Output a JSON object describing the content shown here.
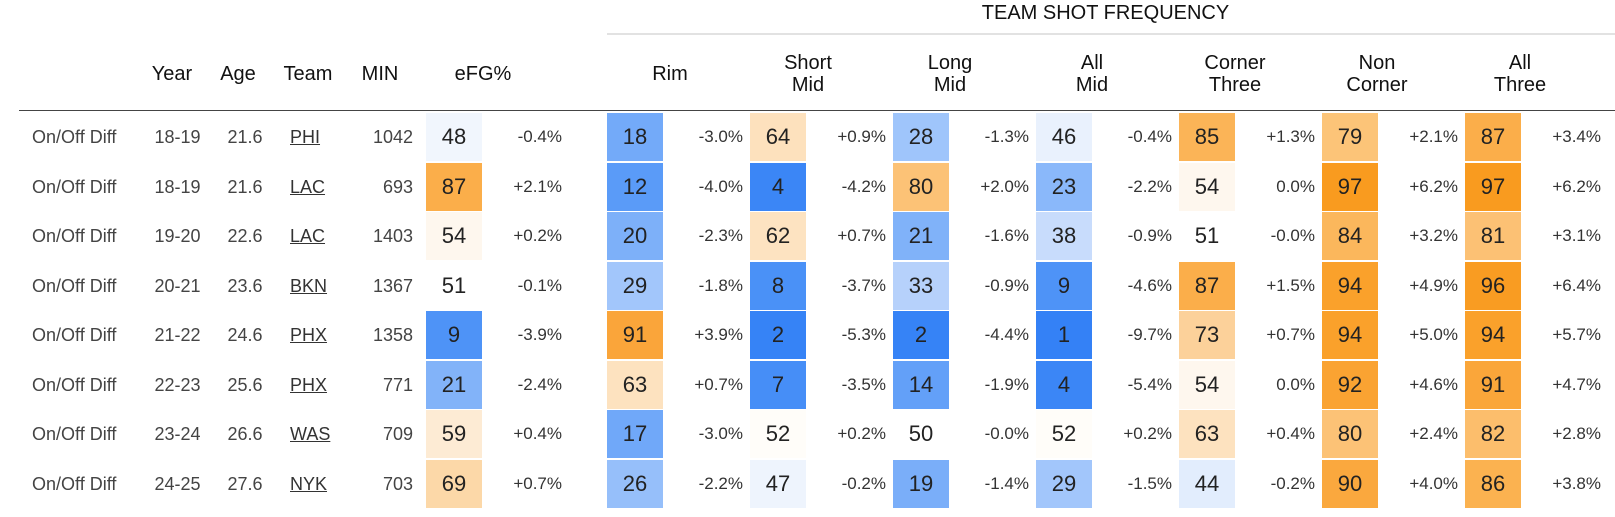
{
  "group_title": "TEAM SHOT FREQUENCY",
  "headers": {
    "year": "Year",
    "age": "Age",
    "team": "Team",
    "min": "MIN",
    "efg": "eFG%",
    "rim": "Rim",
    "short_mid_1": "Short",
    "short_mid_2": "Mid",
    "long_mid_1": "Long",
    "long_mid_2": "Mid",
    "all_mid_1": "All",
    "all_mid_2": "Mid",
    "corner_three_1": "Corner",
    "corner_three_2": "Three",
    "non_corner_1": "Non",
    "non_corner_2": "Corner",
    "all_three_1": "All",
    "all_three_2": "Three"
  },
  "rows": [
    {
      "label": "On/Off Diff",
      "year": "18-19",
      "age": "21.6",
      "team": "PHI",
      "min": "1042",
      "efg": {
        "pct": "48",
        "diff": "-0.4%",
        "color": "#f1f6fd"
      },
      "rim": {
        "pct": "18",
        "diff": "-3.0%",
        "color": "#73aaf9"
      },
      "short_mid": {
        "pct": "64",
        "diff": "+0.9%",
        "color": "#fde1bd"
      },
      "long_mid": {
        "pct": "28",
        "diff": "-1.3%",
        "color": "#9fc5fb"
      },
      "all_mid": {
        "pct": "46",
        "diff": "-0.4%",
        "color": "#e9f1fd"
      },
      "corner_three": {
        "pct": "85",
        "diff": "+1.3%",
        "color": "#fbb457"
      },
      "non_corner": {
        "pct": "79",
        "diff": "+2.1%",
        "color": "#fcc478"
      },
      "all_three": {
        "pct": "87",
        "diff": "+3.4%",
        "color": "#fbae4a"
      }
    },
    {
      "label": "On/Off Diff",
      "year": "18-19",
      "age": "21.6",
      "team": "LAC",
      "min": "693",
      "efg": {
        "pct": "87",
        "diff": "+2.1%",
        "color": "#fbae4a"
      },
      "rim": {
        "pct": "12",
        "diff": "-4.0%",
        "color": "#5a9bf8"
      },
      "short_mid": {
        "pct": "4",
        "diff": "-4.2%",
        "color": "#3b86f6"
      },
      "long_mid": {
        "pct": "80",
        "diff": "+2.0%",
        "color": "#fcc276"
      },
      "all_mid": {
        "pct": "23",
        "diff": "-2.2%",
        "color": "#8ab8fa"
      },
      "corner_three": {
        "pct": "54",
        "diff": "0.0%",
        "color": "#fef7ee"
      },
      "non_corner": {
        "pct": "97",
        "diff": "+6.2%",
        "color": "#f99b1f"
      },
      "all_three": {
        "pct": "97",
        "diff": "+6.2%",
        "color": "#f99b1f"
      }
    },
    {
      "label": "On/Off Diff",
      "year": "19-20",
      "age": "22.6",
      "team": "LAC",
      "min": "1403",
      "efg": {
        "pct": "54",
        "diff": "+0.2%",
        "color": "#fef7ee"
      },
      "rim": {
        "pct": "20",
        "diff": "-2.3%",
        "color": "#7db0f9"
      },
      "short_mid": {
        "pct": "62",
        "diff": "+0.7%",
        "color": "#fde3c1"
      },
      "long_mid": {
        "pct": "21",
        "diff": "-1.6%",
        "color": "#80b2f9"
      },
      "all_mid": {
        "pct": "38",
        "diff": "-0.9%",
        "color": "#c8dcfc"
      },
      "corner_three": {
        "pct": "51",
        "diff": "-0.0%",
        "color": "#ffffff"
      },
      "non_corner": {
        "pct": "84",
        "diff": "+3.2%",
        "color": "#fbb75c"
      },
      "all_three": {
        "pct": "81",
        "diff": "+3.1%",
        "color": "#fcc174"
      }
    },
    {
      "label": "On/Off Diff",
      "year": "20-21",
      "age": "23.6",
      "team": "BKN",
      "min": "1367",
      "efg": {
        "pct": "51",
        "diff": "-0.1%",
        "color": "#ffffff"
      },
      "rim": {
        "pct": "29",
        "diff": "-1.8%",
        "color": "#a2c6fb"
      },
      "short_mid": {
        "pct": "8",
        "diff": "-3.7%",
        "color": "#4a91f7"
      },
      "long_mid": {
        "pct": "33",
        "diff": "-0.9%",
        "color": "#b6d1fb"
      },
      "all_mid": {
        "pct": "9",
        "diff": "-4.6%",
        "color": "#4e93f7"
      },
      "corner_three": {
        "pct": "87",
        "diff": "+1.5%",
        "color": "#fbae4a"
      },
      "non_corner": {
        "pct": "94",
        "diff": "+4.9%",
        "color": "#faa12b"
      },
      "all_three": {
        "pct": "96",
        "diff": "+6.4%",
        "color": "#f99c22"
      }
    },
    {
      "label": "On/Off Diff",
      "year": "21-22",
      "age": "24.6",
      "team": "PHX",
      "min": "1358",
      "efg": {
        "pct": "9",
        "diff": "-3.9%",
        "color": "#4e93f7"
      },
      "rim": {
        "pct": "91",
        "diff": "+3.9%",
        "color": "#faa53a"
      },
      "short_mid": {
        "pct": "2",
        "diff": "-5.3%",
        "color": "#3683f6"
      },
      "long_mid": {
        "pct": "2",
        "diff": "-4.4%",
        "color": "#3683f6"
      },
      "all_mid": {
        "pct": "1",
        "diff": "-9.7%",
        "color": "#3481f6"
      },
      "corner_three": {
        "pct": "73",
        "diff": "+0.7%",
        "color": "#fcd19a"
      },
      "non_corner": {
        "pct": "94",
        "diff": "+5.0%",
        "color": "#faa12b"
      },
      "all_three": {
        "pct": "94",
        "diff": "+5.7%",
        "color": "#faa12b"
      }
    },
    {
      "label": "On/Off Diff",
      "year": "22-23",
      "age": "25.6",
      "team": "PHX",
      "min": "771",
      "efg": {
        "pct": "21",
        "diff": "-2.4%",
        "color": "#82b3f9"
      },
      "rim": {
        "pct": "63",
        "diff": "+0.7%",
        "color": "#fde2bf"
      },
      "short_mid": {
        "pct": "7",
        "diff": "-3.5%",
        "color": "#468ef7"
      },
      "long_mid": {
        "pct": "14",
        "diff": "-1.9%",
        "color": "#63a0f8"
      },
      "all_mid": {
        "pct": "4",
        "diff": "-5.4%",
        "color": "#3b86f6"
      },
      "corner_three": {
        "pct": "54",
        "diff": "0.0%",
        "color": "#fef7ee"
      },
      "non_corner": {
        "pct": "92",
        "diff": "+4.6%",
        "color": "#faa332"
      },
      "all_three": {
        "pct": "91",
        "diff": "+4.7%",
        "color": "#faa63a"
      }
    },
    {
      "label": "On/Off Diff",
      "year": "23-24",
      "age": "26.6",
      "team": "WAS",
      "min": "709",
      "efg": {
        "pct": "59",
        "diff": "+0.4%",
        "color": "#fdebd4"
      },
      "rim": {
        "pct": "17",
        "diff": "-3.0%",
        "color": "#70a8f9"
      },
      "short_mid": {
        "pct": "52",
        "diff": "+0.2%",
        "color": "#fffdf9"
      },
      "long_mid": {
        "pct": "50",
        "diff": "-0.0%",
        "color": "#ffffff"
      },
      "all_mid": {
        "pct": "52",
        "diff": "+0.2%",
        "color": "#fffdf9"
      },
      "corner_three": {
        "pct": "63",
        "diff": "+0.4%",
        "color": "#fde2bf"
      },
      "non_corner": {
        "pct": "80",
        "diff": "+2.4%",
        "color": "#fcc276"
      },
      "all_three": {
        "pct": "82",
        "diff": "+2.8%",
        "color": "#fcbe6c"
      }
    },
    {
      "label": "On/Off Diff",
      "year": "24-25",
      "age": "27.6",
      "team": "NYK",
      "min": "703",
      "efg": {
        "pct": "69",
        "diff": "+0.7%",
        "color": "#fcd8a8"
      },
      "rim": {
        "pct": "26",
        "diff": "-2.2%",
        "color": "#96bffa"
      },
      "short_mid": {
        "pct": "47",
        "diff": "-0.2%",
        "color": "#eef4fd"
      },
      "long_mid": {
        "pct": "19",
        "diff": "-1.4%",
        "color": "#7aaef9"
      },
      "all_mid": {
        "pct": "29",
        "diff": "-1.5%",
        "color": "#a2c6fb"
      },
      "corner_three": {
        "pct": "44",
        "diff": "-0.2%",
        "color": "#e2edfd"
      },
      "non_corner": {
        "pct": "90",
        "diff": "+4.0%",
        "color": "#faa83e"
      },
      "all_three": {
        "pct": "86",
        "diff": "+3.8%",
        "color": "#fbb250"
      }
    }
  ]
}
